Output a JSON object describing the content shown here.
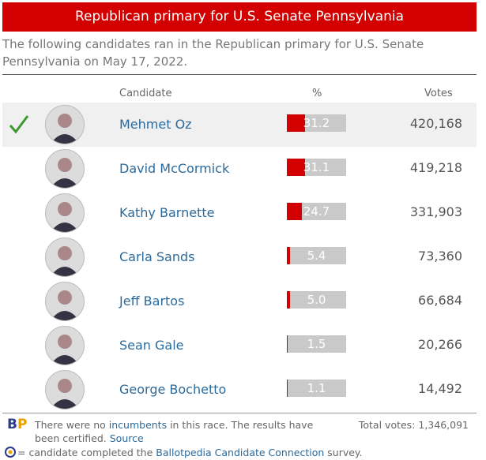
{
  "header": {
    "title": "Republican primary for U.S. Senate Pennsylvania"
  },
  "intro": "The following candidates ran in the Republican primary for U.S. Senate Pennsylvania on May 17, 2022.",
  "columns": {
    "candidate": "Candidate",
    "percent": "%",
    "votes": "Votes"
  },
  "candidates": [
    {
      "name": "Mehmet Oz",
      "percent": "31.2",
      "votes": "420,168",
      "winner": true
    },
    {
      "name": "David McCormick",
      "percent": "31.1",
      "votes": "419,218",
      "winner": false
    },
    {
      "name": "Kathy Barnette",
      "percent": "24.7",
      "votes": "331,903",
      "winner": false
    },
    {
      "name": "Carla Sands",
      "percent": "5.4",
      "votes": "73,360",
      "winner": false
    },
    {
      "name": "Jeff Bartos",
      "percent": "5.0",
      "votes": "66,684",
      "winner": false
    },
    {
      "name": "Sean Gale",
      "percent": "1.5",
      "votes": "20,266",
      "winner": false
    },
    {
      "name": "George Bochetto",
      "percent": "1.1",
      "votes": "14,492",
      "winner": false
    }
  ],
  "footer": {
    "logo": [
      "B",
      "P"
    ],
    "note": [
      "There were no ",
      "incumbents",
      " in this race. The results have been certified. ",
      "Source"
    ],
    "total": "Total votes: 1,346,091",
    "legend": [
      "= candidate completed the ",
      "Ballotpedia Candidate Connection",
      " survey."
    ]
  }
}
